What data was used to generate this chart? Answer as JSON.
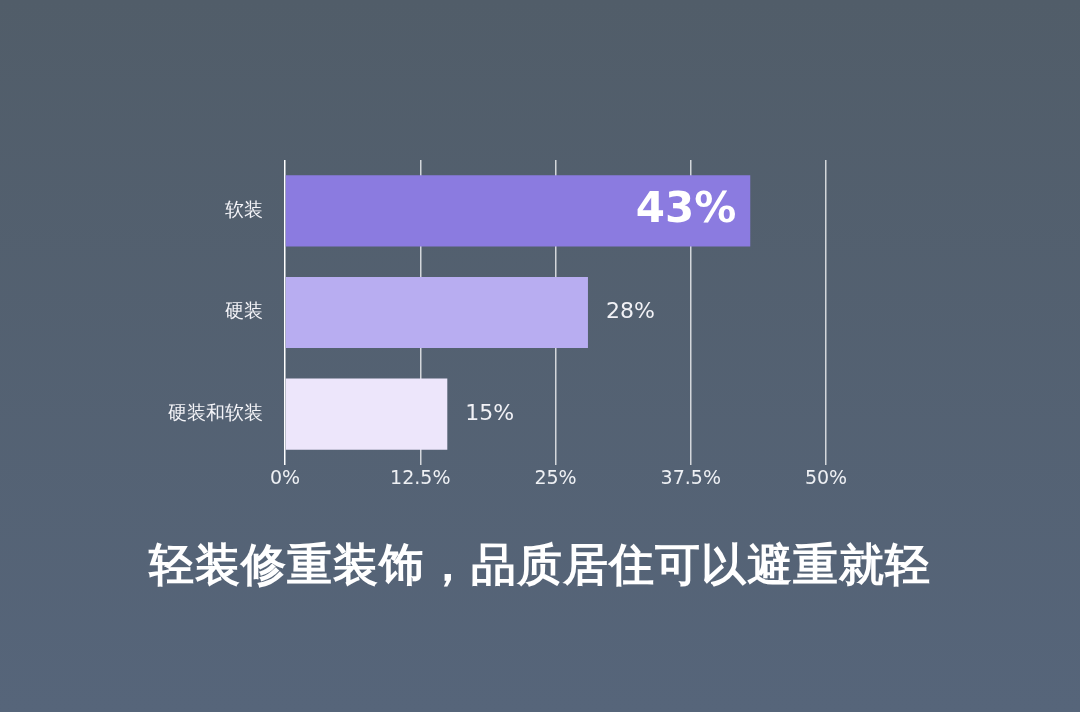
{
  "chart_data": {
    "type": "bar",
    "orientation": "horizontal",
    "title": "轻装修重装饰，品质居住可以避重就轻",
    "categories": [
      "软装",
      "硬装",
      "硬装和软装"
    ],
    "values": [
      43,
      28,
      15
    ],
    "colors": [
      "#8b7be0",
      "#b8adf1",
      "#ede6fb"
    ],
    "value_labels": [
      "43%",
      "28%",
      "15%"
    ],
    "xlim": [
      0,
      50
    ],
    "xticks": [
      {
        "value": 0,
        "label": "0%"
      },
      {
        "value": 12.5,
        "label": "12.5%"
      },
      {
        "value": 25,
        "label": "25%"
      },
      {
        "value": 37.5,
        "label": "37.5%"
      },
      {
        "value": 50,
        "label": "50%"
      }
    ],
    "grid": "x",
    "legend": false
  }
}
